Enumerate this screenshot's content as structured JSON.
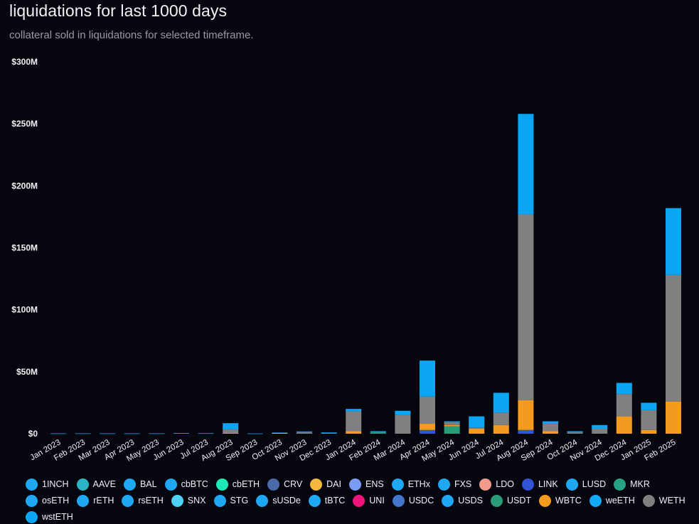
{
  "header": {
    "title": "liquidations for last 1000 days",
    "subtitle": "collateral sold in liquidations for selected timeframe."
  },
  "chart_data": {
    "type": "bar",
    "stacked": true,
    "ylim": [
      0,
      300
    ],
    "y_ticks": [
      "$0",
      "$50M",
      "$100M",
      "$150M",
      "$200M",
      "$250M",
      "$300M"
    ],
    "y_tick_values": [
      0,
      50,
      100,
      150,
      200,
      250,
      300
    ],
    "categories": [
      "Jan 2023",
      "Feb 2023",
      "Mar 2023",
      "Apr 2023",
      "May 2023",
      "Jun 2023",
      "Jul 2023",
      "Aug 2023",
      "Sep 2023",
      "Oct 2023",
      "Nov 2023",
      "Dec 2023",
      "Jan 2024",
      "Feb 2024",
      "Mar 2024",
      "Apr 2024",
      "May 2024",
      "Jun 2024",
      "Jul 2024",
      "Aug 2024",
      "Sep 2024",
      "Oct 2024",
      "Nov 2024",
      "Dec 2024",
      "Jan 2025",
      "Feb 2025"
    ],
    "grid": false,
    "legend_position": "bottom",
    "series": [
      {
        "name": "1INCH",
        "color": "#1ea7f2",
        "values": [
          0,
          0,
          0,
          0,
          0,
          0,
          0,
          0,
          0,
          0,
          0,
          0,
          0,
          0,
          0,
          0,
          0,
          0,
          0,
          0,
          0,
          0,
          0,
          0,
          0,
          0
        ]
      },
      {
        "name": "AAVE",
        "color": "#2bb5c4",
        "values": [
          0,
          0,
          0,
          0,
          0,
          0,
          0,
          0,
          0,
          0,
          0,
          0,
          0,
          0,
          0,
          0,
          0,
          0,
          0,
          0,
          0,
          0,
          0,
          0,
          0,
          0
        ]
      },
      {
        "name": "BAL",
        "color": "#1ea7f2",
        "values": [
          0,
          0,
          0,
          0,
          0,
          0,
          0,
          0,
          0,
          0,
          0,
          0,
          0,
          0,
          0,
          0,
          0,
          0,
          0,
          0,
          0,
          0,
          0,
          0,
          0,
          0
        ]
      },
      {
        "name": "cbBTC",
        "color": "#1ea7f2",
        "values": [
          0,
          0,
          0,
          0,
          0,
          0,
          0,
          0,
          0,
          0,
          0,
          0,
          0,
          0,
          0,
          0,
          0,
          0,
          0,
          0,
          0,
          0,
          0,
          0,
          0,
          0
        ]
      },
      {
        "name": "cbETH",
        "color": "#1de9b6",
        "values": [
          0,
          0,
          0,
          0,
          0,
          0,
          0,
          0,
          0,
          0,
          0,
          0,
          0,
          0,
          0,
          0,
          0,
          0,
          0,
          0,
          0,
          0,
          0,
          0,
          0,
          0
        ]
      },
      {
        "name": "CRV",
        "color": "#4a6aa8",
        "values": [
          0,
          0,
          0,
          0,
          0,
          0,
          0,
          0,
          0,
          0,
          0,
          0,
          0,
          0,
          0,
          0,
          0,
          0,
          0,
          0,
          0,
          0,
          0,
          0,
          0,
          0
        ]
      },
      {
        "name": "DAI",
        "color": "#f5b83d",
        "values": [
          0,
          0,
          0,
          0,
          0,
          0,
          0,
          0.5,
          0,
          0.6,
          0,
          0,
          0,
          0,
          0,
          0,
          0,
          0,
          0,
          0,
          0,
          0,
          0,
          0,
          0,
          0
        ]
      },
      {
        "name": "ENS",
        "color": "#7b9cf5",
        "values": [
          0,
          0,
          0,
          0,
          0,
          0,
          0,
          0,
          0,
          0,
          0,
          0,
          0,
          0,
          0,
          0,
          0,
          0,
          0,
          0,
          0,
          0,
          0,
          0,
          0,
          0
        ]
      },
      {
        "name": "ETHx",
        "color": "#1ea7f2",
        "values": [
          0,
          0,
          0,
          0,
          0,
          0,
          0,
          0,
          0,
          0,
          0,
          0,
          0,
          0,
          0,
          0,
          0,
          0,
          0,
          0,
          0,
          0,
          0,
          0,
          0,
          0
        ]
      },
      {
        "name": "FXS",
        "color": "#1ea7f2",
        "values": [
          0,
          0,
          0,
          0,
          0,
          0,
          0,
          0,
          0,
          0,
          0,
          0,
          0,
          0,
          0,
          0,
          0,
          0,
          0,
          0,
          0,
          0,
          0,
          0,
          0,
          0
        ]
      },
      {
        "name": "LDO",
        "color": "#f29a8c",
        "values": [
          0,
          0,
          0,
          0,
          0,
          0,
          0,
          0,
          0,
          0,
          0,
          0,
          0,
          0,
          0,
          0,
          0,
          0,
          0,
          0,
          0,
          0,
          0,
          0,
          0,
          0
        ]
      },
      {
        "name": "LINK",
        "color": "#2f54d6",
        "values": [
          0,
          0,
          0,
          0,
          0,
          0,
          0,
          0,
          0,
          0,
          0,
          0,
          0,
          0,
          0,
          3,
          0,
          0,
          0,
          3,
          0,
          0,
          0,
          0,
          0,
          0
        ]
      },
      {
        "name": "LUSD",
        "color": "#1ea7f2",
        "values": [
          0,
          0,
          0,
          0,
          0,
          0,
          0,
          0,
          0,
          0,
          0,
          0,
          0,
          0,
          0,
          0,
          0,
          0,
          0,
          0,
          0,
          0,
          0,
          0,
          0,
          0
        ]
      },
      {
        "name": "MKR",
        "color": "#26a385",
        "values": [
          0,
          0,
          0,
          0,
          0,
          0,
          0,
          0,
          0,
          0,
          0,
          0,
          0,
          0,
          0,
          0,
          0,
          0,
          0,
          0,
          0,
          0,
          0,
          0,
          0,
          0
        ]
      },
      {
        "name": "osETH",
        "color": "#1ea7f2",
        "values": [
          0,
          0,
          0,
          0,
          0,
          0,
          0,
          0,
          0,
          0,
          0,
          0,
          0,
          0,
          0,
          0,
          0,
          0,
          0,
          0,
          0,
          0,
          0,
          0,
          0,
          0
        ]
      },
      {
        "name": "rETH",
        "color": "#1ea7f2",
        "values": [
          0,
          0,
          0,
          0,
          0,
          0,
          0,
          0,
          0,
          0,
          0,
          0,
          0,
          0,
          0,
          0,
          0,
          0,
          0,
          0,
          0,
          0,
          0,
          0,
          0,
          0
        ]
      },
      {
        "name": "rsETH",
        "color": "#1ea7f2",
        "values": [
          0,
          0,
          0,
          0,
          0,
          0,
          0,
          0,
          0,
          0,
          0,
          0,
          0,
          0,
          0,
          0,
          0,
          0,
          0,
          0,
          0,
          0,
          0,
          0,
          0,
          0
        ]
      },
      {
        "name": "SNX",
        "color": "#4fd1f5",
        "values": [
          0,
          0,
          0,
          0,
          0,
          0,
          0,
          0,
          0,
          0,
          0,
          0,
          0,
          0,
          0,
          0,
          0,
          0,
          0,
          0,
          0,
          0,
          0,
          0,
          0,
          0
        ]
      },
      {
        "name": "STG",
        "color": "#1ea7f2",
        "values": [
          0,
          0,
          0,
          0,
          0,
          0,
          0,
          0,
          0,
          0,
          0,
          0,
          0,
          0,
          0,
          0,
          0,
          0,
          0,
          0,
          0,
          0,
          0,
          0,
          0,
          0
        ]
      },
      {
        "name": "sUSDe",
        "color": "#1ea7f2",
        "values": [
          0,
          0,
          0,
          0,
          0,
          0,
          0,
          0,
          0,
          0,
          0,
          0,
          0,
          0,
          0,
          0,
          0,
          0,
          0,
          0,
          0,
          0,
          0,
          0,
          0,
          0
        ]
      },
      {
        "name": "tBTC",
        "color": "#1ea7f2",
        "values": [
          0,
          0,
          0,
          0,
          0,
          0,
          0,
          0,
          0,
          0,
          0,
          0,
          0,
          0,
          0,
          0,
          0,
          0,
          0,
          0,
          0,
          0,
          0,
          0,
          0,
          0
        ]
      },
      {
        "name": "UNI",
        "color": "#f0147a",
        "values": [
          0,
          0,
          0,
          0,
          0,
          0,
          0,
          0,
          0,
          0,
          0,
          0,
          0,
          0,
          0,
          0,
          0,
          0,
          0,
          0,
          0,
          0,
          0,
          0,
          0,
          0
        ]
      },
      {
        "name": "USDC",
        "color": "#4477cc",
        "values": [
          0,
          0,
          0,
          0,
          0,
          0,
          0,
          0,
          0,
          0,
          0,
          0,
          0,
          0,
          0,
          0,
          0,
          0,
          0,
          0,
          0,
          0,
          0,
          0,
          0,
          0
        ]
      },
      {
        "name": "USDS",
        "color": "#1ea7f2",
        "values": [
          0,
          0,
          0,
          0,
          0,
          0,
          0,
          0,
          0,
          0,
          0,
          0,
          0,
          0,
          0,
          0,
          0,
          0,
          0,
          0,
          0,
          0,
          0,
          0,
          0,
          0
        ]
      },
      {
        "name": "USDT",
        "color": "#2a9d78",
        "values": [
          0,
          0,
          0,
          0,
          0,
          0,
          0,
          0,
          0,
          0,
          0,
          0,
          0,
          1,
          0,
          0,
          6,
          0,
          0,
          0,
          0,
          0,
          0,
          0,
          0,
          0
        ]
      },
      {
        "name": "WBTC",
        "color": "#f39a1f",
        "values": [
          0,
          0,
          0,
          0,
          0,
          0,
          0,
          0,
          0,
          0,
          0,
          0,
          2,
          0,
          0,
          5,
          1,
          4,
          7,
          24,
          2,
          0,
          0,
          14,
          3,
          26
        ]
      },
      {
        "name": "weETH",
        "color": "#12a9f5",
        "values": [
          0,
          0,
          0,
          0,
          0,
          0,
          0,
          0,
          0,
          0,
          0,
          0,
          0,
          0,
          0,
          0,
          0,
          0,
          0,
          0,
          0,
          0,
          0,
          0,
          0,
          0
        ]
      },
      {
        "name": "WETH",
        "color": "#808080",
        "values": [
          0,
          0,
          0,
          0,
          0,
          0,
          0,
          3,
          0,
          0,
          1,
          0,
          16,
          0,
          15,
          22,
          2,
          1,
          10,
          150,
          6,
          1,
          4,
          18,
          16,
          102
        ]
      },
      {
        "name": "wstETH",
        "color": "#0aa6f4",
        "values": [
          0.3,
          0.3,
          0.3,
          0.3,
          0.3,
          0.5,
          0.4,
          5,
          0.2,
          0.3,
          0.8,
          1,
          2,
          1,
          3.5,
          29,
          1,
          9,
          16,
          81,
          2,
          1,
          3,
          9,
          6,
          54
        ]
      }
    ]
  }
}
